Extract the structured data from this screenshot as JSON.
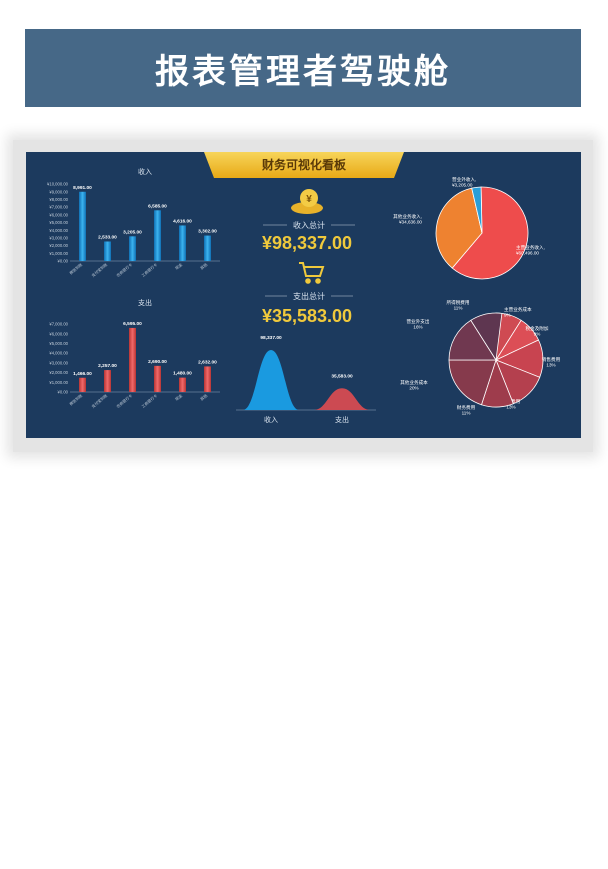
{
  "page": {
    "title": "报表管理者驾驶舱"
  },
  "dashboard": {
    "title": "财务可视化看板",
    "income_total_label": "收入总计",
    "income_total_value": "¥98,337.00",
    "expense_total_label": "支出总计",
    "expense_total_value": "¥35,583.00",
    "colors": {
      "background": "#1c3a5e",
      "income": "#1a9ae0",
      "expense": "#e05454",
      "title_banner": "#f2c232",
      "gold": "#f0c93c"
    },
    "icons": [
      "money-bag-icon",
      "shopping-cart-icon"
    ]
  },
  "chart_data": [
    {
      "id": "income-bar",
      "type": "bar",
      "title": "收入",
      "categories": [
        "微信到账",
        "支付宝到账",
        "农商银行卡",
        "工商银行卡",
        "现金",
        "其他"
      ],
      "values": [
        8991,
        2533,
        3205,
        6585,
        4616,
        3302
      ],
      "data_labels": [
        "8,991.00",
        "2,533.00",
        "3,205.00",
        "6,585.00",
        "4,616.00",
        "3,302.00"
      ],
      "yticks": [
        "¥0.00",
        "¥1,000.00",
        "¥2,000.00",
        "¥3,000.00",
        "¥4,000.00",
        "¥5,000.00",
        "¥6,000.00",
        "¥7,000.00",
        "¥8,000.00",
        "¥9,000.00",
        "¥10,000.00"
      ],
      "ylim": [
        0,
        10000
      ],
      "color": "#1a9ae0",
      "grid": false
    },
    {
      "id": "expense-bar",
      "type": "bar",
      "title": "支出",
      "categories": [
        "微信到账",
        "支付宝到账",
        "农商银行卡",
        "工商银行卡",
        "现金",
        "其他"
      ],
      "values": [
        1466,
        2257,
        6595,
        2690,
        1480,
        2632
      ],
      "data_labels": [
        "1,466.00",
        "2,257.00",
        "6,595.00",
        "2,690.00",
        "1,480.00",
        "2,632.00"
      ],
      "yticks": [
        "¥0.00",
        "¥1,000.00",
        "¥2,000.00",
        "¥3,000.00",
        "¥4,000.00",
        "¥5,000.00",
        "¥6,000.00",
        "¥7,000.00"
      ],
      "ylim": [
        0,
        7000
      ],
      "color": "#e05454",
      "grid": false
    },
    {
      "id": "totals-area",
      "type": "area",
      "categories": [
        "收入",
        "支出"
      ],
      "values": [
        98337,
        35583
      ],
      "data_labels": [
        "98,337.00",
        "35,583.00"
      ],
      "colors": [
        "#1a9ae0",
        "#cc4a52"
      ]
    },
    {
      "id": "income-pie",
      "type": "pie",
      "slices": [
        {
          "label": "主营业务收入",
          "value": 60496,
          "text": "主营业务收入, ¥60,496.00",
          "color": "#ee4c4c"
        },
        {
          "label": "其他业务收入",
          "value": 34636,
          "text": "其他业务收入, ¥34,636.00",
          "color": "#ee8230"
        },
        {
          "label": "营业外收入",
          "value": 3205,
          "text": "营业外收入, ¥3,205.00",
          "color": "#2a9ed8"
        }
      ]
    },
    {
      "id": "expense-pie",
      "type": "pie",
      "slices": [
        {
          "label": "主营业务成本",
          "percent": 9,
          "text_name": "主营业务成本",
          "text_pct": "9%",
          "color": "#cf4a52"
        },
        {
          "label": "税金及附加",
          "percent": 9,
          "text_name": "税金及附加",
          "text_pct": "9%",
          "color": "#dc4e56"
        },
        {
          "label": "销售费用",
          "percent": 13,
          "text_name": "销售费用",
          "text_pct": "13%",
          "color": "#c84450"
        },
        {
          "label": "管理费用",
          "percent": 13,
          "text_name": "管理费用",
          "text_pct": "13%",
          "color": "#b4404e"
        },
        {
          "label": "财务费用",
          "percent": 11,
          "text_name": "财务费用",
          "text_pct": "11%",
          "color": "#9e3c4c"
        },
        {
          "label": "其他业务成本",
          "percent": 20,
          "text_name": "其他业务成本",
          "text_pct": "20%",
          "color": "#863a4c"
        },
        {
          "label": "营业外支出",
          "percent": 16,
          "text_name": "营业外支出",
          "text_pct": "16%",
          "color": "#703850"
        },
        {
          "label": "所得税费用",
          "percent": 11,
          "text_name": "所得税费用",
          "text_pct": "11%",
          "color": "#5e3650"
        }
      ]
    }
  ]
}
